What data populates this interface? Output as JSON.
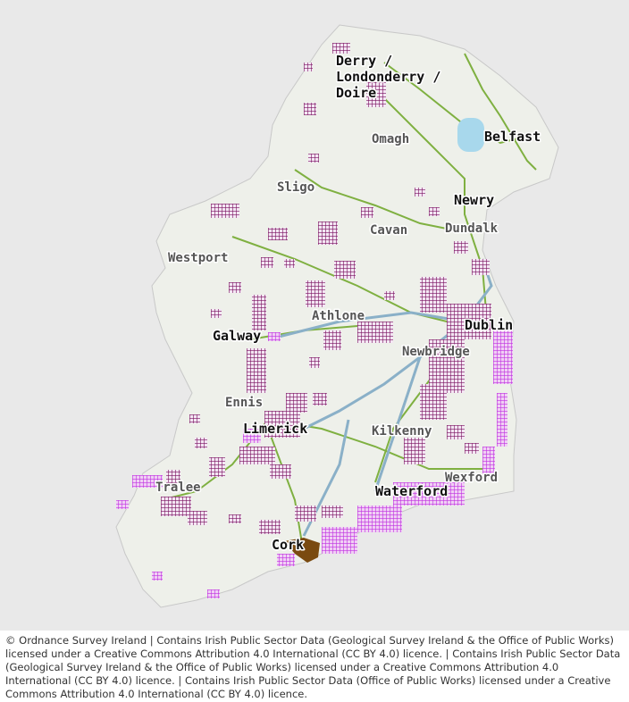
{
  "map": {
    "labels": {
      "derry": [
        "Derry /",
        "Londonderry /",
        "Doire"
      ],
      "omagh": "Omagh",
      "belfast": "Belfast",
      "sligo": "Sligo",
      "newry": "Newry",
      "dundalk": "Dundalk",
      "cavan": "Cavan",
      "westport": "Westport",
      "athlone": "Athlone",
      "dublin": "Dublin",
      "galway": "Galway",
      "newbridge": "Newbridge",
      "ennis": "Ennis",
      "limerick": "Limerick",
      "kilkenny": "Kilkenny",
      "tralee": "Tralee",
      "wexford": "Wexford",
      "waterford": "Waterford",
      "cork": "Cork"
    }
  },
  "attribution": "© Ordnance Survey Ireland | Contains Irish Public Sector Data (Geological Survey Ireland & the Office of Public Works) licensed under a Creative Commons Attribution 4.0 International (CC BY 4.0) licence. | Contains Irish Public Sector Data (Geological Survey Ireland & the Office of Public Works) licensed under a Creative Commons Attribution 4.0 International (CC BY 4.0) licence. | Contains Irish Public Sector Data (Office of Public Works) licensed under a Creative Commons Attribution 4.0 International (CC BY 4.0) licence."
}
